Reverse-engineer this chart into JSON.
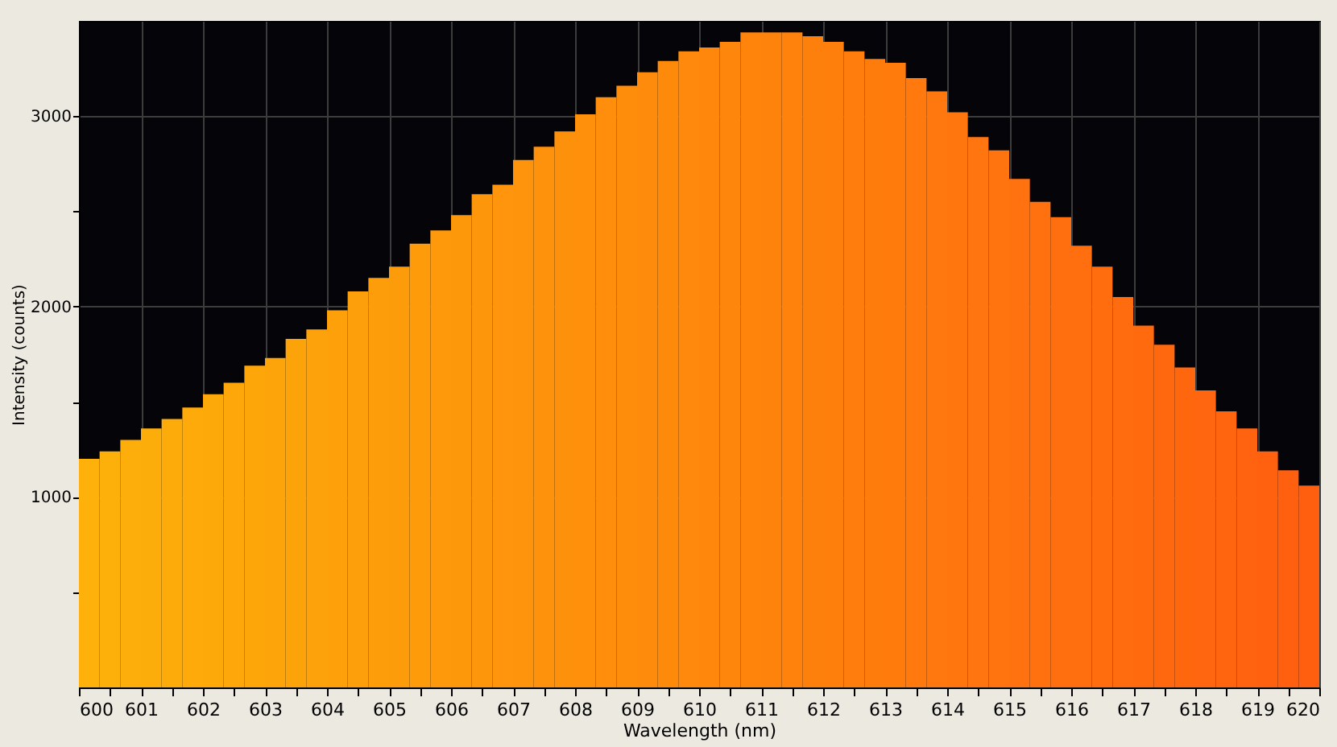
{
  "chart_data": {
    "type": "histogram",
    "xlabel": "Wavelength (nm)",
    "ylabel": "Intensity (counts)",
    "bins": [
      600,
      600.333,
      600.667,
      601,
      601.333,
      601.667,
      602,
      602.333,
      602.667,
      603,
      603.333,
      603.667,
      604,
      604.333,
      604.667,
      605,
      605.333,
      605.667,
      606,
      606.333,
      606.667,
      607,
      607.333,
      607.667,
      608,
      608.333,
      608.667,
      609,
      609.333,
      609.667,
      610,
      610.333,
      610.667,
      611,
      611.333,
      611.667,
      612,
      612.333,
      612.667,
      613,
      613.333,
      613.667,
      614,
      614.333,
      614.667,
      615,
      615.333,
      615.667,
      616,
      616.333,
      616.667,
      617,
      617.333,
      617.667,
      618,
      618.333,
      618.667,
      619,
      619.333,
      619.667,
      620
    ],
    "values": [
      1200,
      1240,
      1300,
      1360,
      1410,
      1470,
      1540,
      1600,
      1690,
      1730,
      1830,
      1880,
      1980,
      2080,
      2150,
      2210,
      2330,
      2400,
      2480,
      2590,
      2640,
      2770,
      2840,
      2920,
      3010,
      3100,
      3160,
      3230,
      3290,
      3340,
      3360,
      3390,
      3440,
      3440,
      3440,
      3420,
      3390,
      3340,
      3300,
      3280,
      3200,
      3130,
      3020,
      2890,
      2820,
      2670,
      2550,
      2470,
      2320,
      2210,
      2050,
      1900,
      1800,
      1680,
      1560,
      1450,
      1360,
      1240,
      1140,
      1060
    ],
    "colors": [
      "#fdb10a",
      "#fdb00a",
      "#fdae0a",
      "#fdad0a",
      "#fdab0a",
      "#fdaa0a",
      "#fda90a",
      "#fda70a",
      "#fda60a",
      "#fda40a",
      "#fda30a",
      "#fda20a",
      "#fda00a",
      "#fd9f0a",
      "#fd9d0a",
      "#fd9c0a",
      "#fd9b0a",
      "#fd990a",
      "#fd980a",
      "#fd960a",
      "#fe950c",
      "#fe940c",
      "#fe920c",
      "#fe910c",
      "#fe900c",
      "#fe8e0c",
      "#fe8d0c",
      "#fe8b0c",
      "#fe8a0c",
      "#fe890c",
      "#fe870c",
      "#fe860c",
      "#fe840c",
      "#fe830c",
      "#fe820c",
      "#fe800c",
      "#fe7f0c",
      "#fe7d0c",
      "#fe7c0c",
      "#fe7b0c",
      "#ff790f",
      "#ff780f",
      "#ff760f",
      "#ff750f",
      "#ff740f",
      "#ff720f",
      "#ff710f",
      "#ff6f0f",
      "#ff6e0f",
      "#ff6d0f",
      "#ff6b0f",
      "#ff6a0f",
      "#ff680f",
      "#ff670f",
      "#ff660f",
      "#ff640f",
      "#ff630f",
      "#ff610f",
      "#ff600f",
      "#ff5f0f"
    ],
    "xlim": [
      600,
      620
    ],
    "xticks": [
      600,
      {
        "value": 600.5,
        "label": null
      },
      601,
      {
        "value": 601.5,
        "label": null
      },
      602,
      {
        "value": 602.5,
        "label": null
      },
      603,
      {
        "value": 603.5,
        "label": null
      },
      604,
      {
        "value": 604.5,
        "label": null
      },
      605,
      {
        "value": 605.5,
        "label": null
      },
      606,
      {
        "value": 606.5,
        "label": null
      },
      607,
      {
        "value": 607.5,
        "label": null
      },
      608,
      {
        "value": 608.5,
        "label": null
      },
      609,
      {
        "value": 609.5,
        "label": null
      },
      610,
      {
        "value": 610.5,
        "label": null
      },
      611,
      {
        "value": 611.5,
        "label": null
      },
      612,
      {
        "value": 612.5,
        "label": null
      },
      613,
      {
        "value": 613.5,
        "label": null
      },
      614,
      {
        "value": 614.5,
        "label": null
      },
      615,
      {
        "value": 615.5,
        "label": null
      },
      616,
      {
        "value": 616.5,
        "label": null
      },
      617,
      {
        "value": 617.5,
        "label": null
      },
      618,
      {
        "value": 618.5,
        "label": null
      },
      619,
      {
        "value": 619.5,
        "label": null
      },
      620
    ],
    "ylim": [
      0,
      3500
    ],
    "yticks": [
      {
        "value": 500,
        "label": null
      },
      1000,
      {
        "value": 1500,
        "label": null
      },
      2000,
      {
        "value": 2500,
        "label": null
      },
      3000
    ],
    "grid": true
  }
}
